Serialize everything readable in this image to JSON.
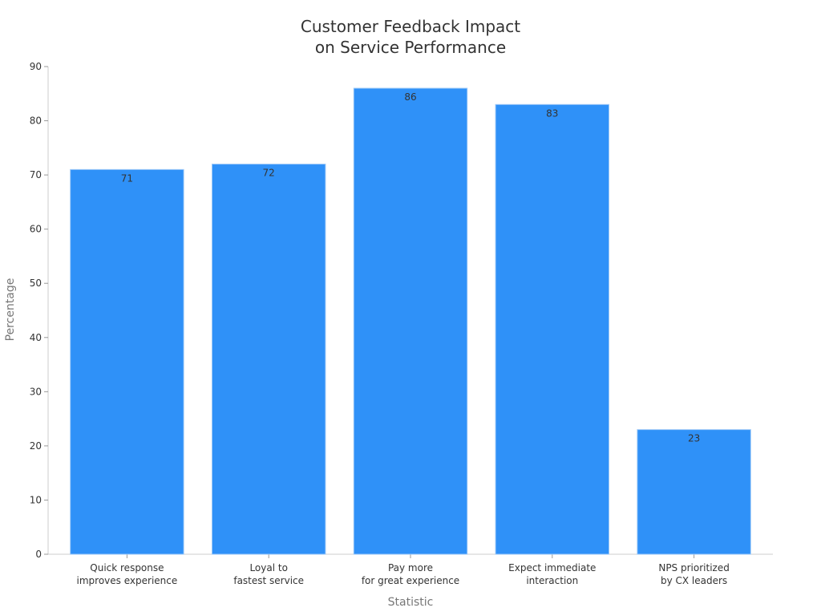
{
  "chart_data": {
    "type": "bar",
    "title_lines": [
      "Customer Feedback Impact",
      "on Service Performance"
    ],
    "xlabel": "Statistic",
    "ylabel": "Percentage",
    "ylim": [
      0,
      90
    ],
    "yticks": [
      0,
      10,
      20,
      30,
      40,
      50,
      60,
      70,
      80,
      90
    ],
    "categories": [
      [
        "Quick response",
        "improves experience"
      ],
      [
        "Loyal to",
        "fastest service"
      ],
      [
        "Pay more",
        "for great experience"
      ],
      [
        "Expect immediate",
        "interaction"
      ],
      [
        "NPS prioritized",
        "by CX leaders"
      ]
    ],
    "values": [
      71,
      72,
      86,
      83,
      23
    ],
    "bar_color": "#2f91f8",
    "grid": false,
    "legend": "none"
  }
}
